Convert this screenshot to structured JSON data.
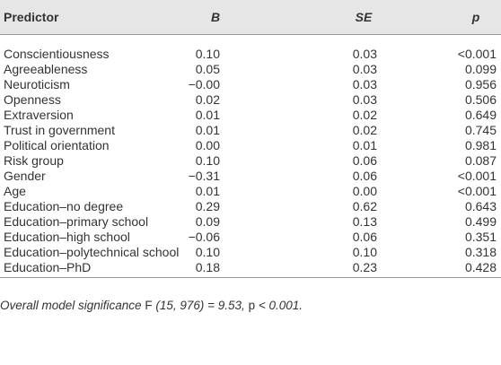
{
  "table": {
    "columns": [
      "Predictor",
      "B",
      "SE",
      "p"
    ],
    "rows": [
      [
        "Conscientiousness",
        "0.10",
        "0.03",
        "<0.001"
      ],
      [
        "Agreeableness",
        "0.05",
        "0.03",
        "0.099"
      ],
      [
        "Neuroticism",
        "−0.00",
        "0.03",
        "0.956"
      ],
      [
        "Openness",
        "0.02",
        "0.03",
        "0.506"
      ],
      [
        "Extraversion",
        "0.01",
        "0.02",
        "0.649"
      ],
      [
        "Trust in government",
        "0.01",
        "0.02",
        "0.745"
      ],
      [
        "Political orientation",
        "0.00",
        "0.01",
        "0.981"
      ],
      [
        "Risk group",
        "0.10",
        "0.06",
        "0.087"
      ],
      [
        "Gender",
        "−0.31",
        "0.06",
        "<0.001"
      ],
      [
        "Age",
        "0.01",
        "0.00",
        "<0.001"
      ],
      [
        "Education–no degree",
        "0.29",
        "0.62",
        "0.643"
      ],
      [
        "Education–primary school",
        "0.09",
        "0.13",
        "0.499"
      ],
      [
        "Education–high school",
        "−0.06",
        "0.06",
        "0.351"
      ],
      [
        "Education–polytechnical school",
        "0.10",
        "0.10",
        "0.318"
      ],
      [
        "Education–PhD",
        "0.18",
        "0.23",
        "0.428"
      ]
    ],
    "footnote": [
      {
        "text": "Overall model significance",
        "italic": true
      },
      {
        "text": "F",
        "italic": false
      },
      {
        "text": "(15, 976) = 9.53,",
        "italic": true
      },
      {
        "text": "p",
        "italic": false
      },
      {
        "text": "< 0.001.",
        "italic": true
      }
    ]
  }
}
